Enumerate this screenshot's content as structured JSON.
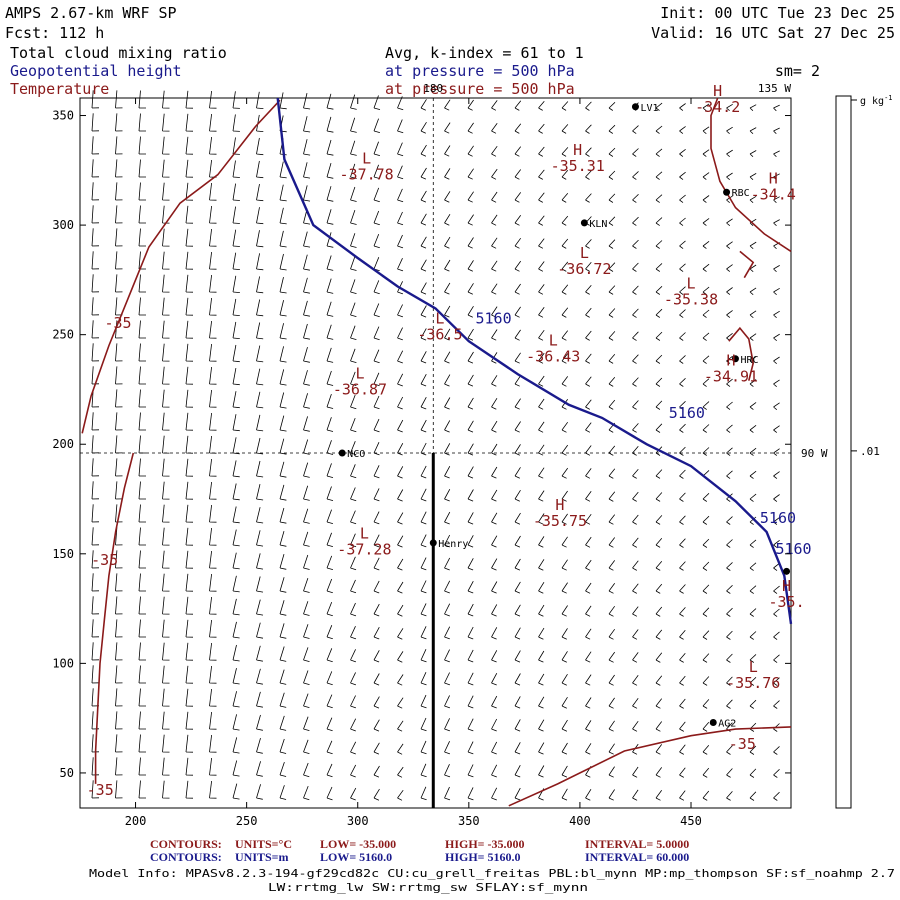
{
  "header": {
    "model_line": "AMPS 2.67-km WRF SP",
    "fcst_line": "Fcst:  112 h",
    "init_line": "Init: 00 UTC Tue 23 Dec 25",
    "valid_line": "Valid: 16 UTC Sat 27 Dec 25",
    "field1": "Total cloud mixing ratio",
    "field2": "Geopotential height",
    "field3": "Temperature",
    "avg_line": "Avg, k-index =  61 to   1",
    "pressure_line1": "at pressure =  500 hPa",
    "pressure_line2": "at pressure =  500 hPa",
    "smoothing": "sm= 2"
  },
  "colors": {
    "black": "#000000",
    "temperature": "#8b1a1a",
    "height": "#1a1a8c",
    "field_blue": "#1a1a8c"
  },
  "chart_data": {
    "type": "contour-map",
    "x_ticks": [
      200,
      250,
      300,
      350,
      400,
      450
    ],
    "y_ticks": [
      50,
      100,
      150,
      200,
      250,
      300,
      350
    ],
    "xlim": [
      175,
      495
    ],
    "ylim": [
      34,
      358
    ],
    "grid_labels": {
      "lon_180": "180",
      "lon_135w": "135 W",
      "lon_90w": "90 W"
    },
    "stations": [
      {
        "name": "KLN",
        "x": 402,
        "y": 301
      },
      {
        "name": "RBC",
        "x": 466,
        "y": 315
      },
      {
        "name": "HRC",
        "x": 470,
        "y": 239
      },
      {
        "name": "NCO",
        "x": 293,
        "y": 196
      },
      {
        "name": "Henry",
        "x": 334,
        "y": 155
      },
      {
        "name": "AG2",
        "x": 460,
        "y": 73
      },
      {
        "name": "LV1",
        "x": 425,
        "y": 354
      },
      {
        "name": "",
        "x": 493,
        "y": 142
      }
    ],
    "temperature_extrema": [
      {
        "type": "L",
        "value": "-37.78",
        "x": 304,
        "y": 328
      },
      {
        "type": "H",
        "value": "-35.31",
        "x": 399,
        "y": 332
      },
      {
        "type": "H",
        "value": "-34.2",
        "x": 462,
        "y": 359
      },
      {
        "type": "H",
        "value": "-34.4",
        "x": 487,
        "y": 319
      },
      {
        "type": "L",
        "value": "-36.72",
        "x": 402,
        "y": 285
      },
      {
        "type": "L",
        "value": "-35.38",
        "x": 450,
        "y": 271
      },
      {
        "type": "L",
        "value": "-36.5",
        "x": 337,
        "y": 255
      },
      {
        "type": "L",
        "value": "-36.43",
        "x": 388,
        "y": 245
      },
      {
        "type": "H",
        "value": "-34.91",
        "x": 468,
        "y": 236
      },
      {
        "type": "L",
        "value": "-36.87",
        "x": 301,
        "y": 230
      },
      {
        "type": "H",
        "value": "-35.75",
        "x": 391,
        "y": 170
      },
      {
        "type": "L",
        "value": "-37.28",
        "x": 303,
        "y": 157
      },
      {
        "type": "H",
        "value": "-35.",
        "x": 493,
        "y": 133
      },
      {
        "type": "L",
        "value": "-35.76",
        "x": 478,
        "y": 96
      }
    ],
    "temperature_contour_labels": [
      {
        "text": "-35",
        "x": 186,
        "y": 253
      },
      {
        "text": "-35",
        "x": 180,
        "y": 145
      },
      {
        "text": "-35",
        "x": 178,
        "y": 40
      },
      {
        "text": "-35",
        "x": 467,
        "y": 61
      }
    ],
    "height_contour_labels": [
      {
        "text": "5160",
        "x": 353,
        "y": 255
      },
      {
        "text": "5160",
        "x": 440,
        "y": 212
      },
      {
        "text": "5160",
        "x": 481,
        "y": 164
      },
      {
        "text": "5160",
        "x": 488,
        "y": 150
      }
    ],
    "temperature_contours": [
      [
        [
          265,
          357
        ],
        [
          254,
          345
        ],
        [
          237,
          323
        ],
        [
          220,
          310
        ],
        [
          206,
          290
        ],
        [
          196,
          265
        ],
        [
          188,
          245
        ],
        [
          180,
          222
        ],
        [
          176,
          205
        ]
      ],
      [
        [
          199,
          196
        ],
        [
          195,
          180
        ],
        [
          191,
          160
        ],
        [
          188,
          140
        ],
        [
          186,
          120
        ],
        [
          184,
          100
        ],
        [
          183,
          80
        ],
        [
          182,
          60
        ],
        [
          182,
          45
        ]
      ],
      [
        [
          368,
          35
        ],
        [
          390,
          45
        ],
        [
          420,
          60
        ],
        [
          450,
          67
        ],
        [
          470,
          70
        ],
        [
          495,
          71
        ]
      ],
      [
        [
          495,
          288
        ],
        [
          483,
          296
        ],
        [
          470,
          308
        ],
        [
          463,
          320
        ],
        [
          459,
          335
        ],
        [
          459,
          350
        ],
        [
          462,
          358
        ]
      ],
      [
        [
          472,
          288
        ],
        [
          478,
          283
        ],
        [
          474,
          276
        ]
      ],
      [
        [
          467,
          247
        ],
        [
          472,
          253
        ],
        [
          476,
          248
        ],
        [
          478,
          237
        ],
        [
          476,
          229
        ]
      ]
    ],
    "height_contours": [
      [
        [
          264,
          358
        ],
        [
          267,
          330
        ],
        [
          280,
          300
        ],
        [
          300,
          285
        ],
        [
          318,
          272
        ],
        [
          335,
          262
        ],
        [
          350,
          247
        ],
        [
          372,
          232
        ],
        [
          395,
          218
        ],
        [
          410,
          212
        ],
        [
          430,
          200
        ],
        [
          450,
          190
        ],
        [
          470,
          174
        ],
        [
          484,
          160
        ],
        [
          492,
          140
        ],
        [
          495,
          118
        ]
      ]
    ],
    "transect": {
      "x": 334,
      "y_start": 34,
      "y_end": 196
    },
    "colorbar": {
      "unit": "g kg",
      "unit_exponent": "-1",
      "tick_label": ".01",
      "tick_fraction": 0.49
    }
  },
  "footer": {
    "row1": {
      "label": "CONTOURS:",
      "units": "UNITS=°C",
      "low": "LOW= -35.000",
      "high": "HIGH= -35.000",
      "interval": "INTERVAL=   5.0000"
    },
    "row2": {
      "label": "CONTOURS:",
      "units": "UNITS=m",
      "low": "LOW=  5160.0",
      "high": "HIGH=  5160.0",
      "interval": "INTERVAL=  60.000"
    },
    "model_info1": "Model Info: MPASv8.2.3-194-gf29cd82c CU:cu_grell_freitas PBL:bl_mynn MP:mp_thompson SF:sf_noahmp 2.7",
    "model_info2": "LW:rrtmg_lw SW:rrtmg_sw SFLAY:sf_mynn"
  }
}
